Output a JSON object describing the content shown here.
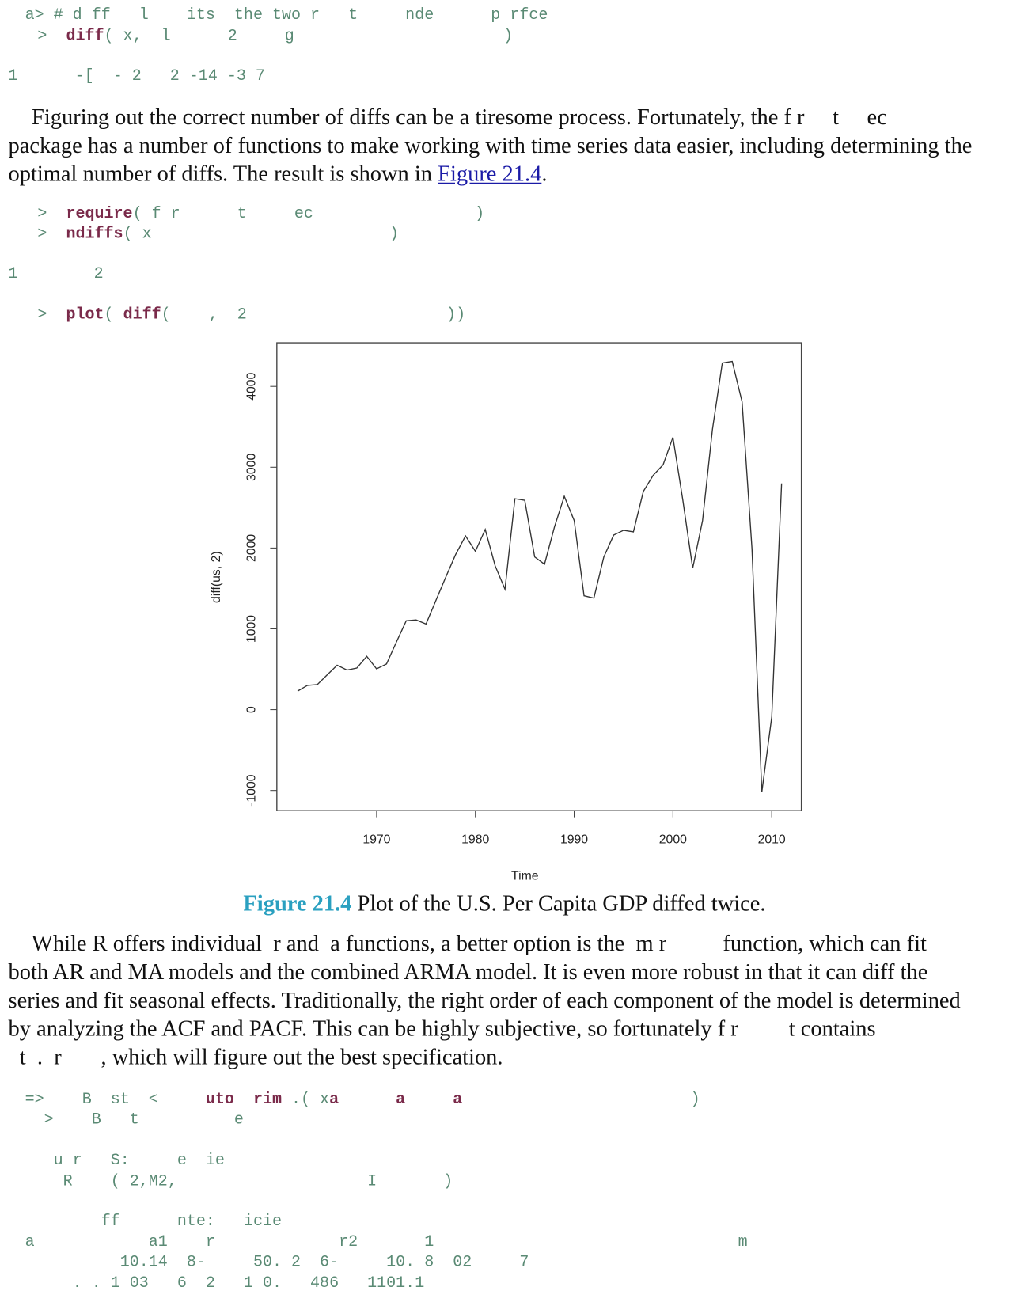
{
  "code_1": [
    [
      "a> # d ff   l    its  the two r   t     nde      p rfce"
    ],
    [
      ">  ",
      "diff",
      "( x,  l      2     g                      )"
    ]
  ],
  "output_1": "1      -[  - 2   2 -14 -3 7",
  "para_1": [
    [
      "Figuring out the correct number of diffs can be a tiresome process. Fortunately, the f r     t     ec"
    ],
    [
      "package has a number of functions to make working with time series data easier, including determining the"
    ],
    [
      "optimal number of diffs. The result is shown in ",
      "Figure 21.4",
      "."
    ]
  ],
  "code_2": [
    [
      ">  ",
      "require",
      "( f r      t     ec                 )"
    ],
    [
      ">  ",
      "ndiffs",
      "( x                         )"
    ]
  ],
  "output_2": "1        2",
  "code_3": [
    [
      ">  ",
      "plot",
      "( ",
      "diff",
      "(    ,  2                     ))"
    ]
  ],
  "chart_data": {
    "type": "line",
    "x_label": "Time",
    "y_label": "diff(us, 2)",
    "x": [
      1962,
      1963,
      1964,
      1965,
      1966,
      1967,
      1968,
      1969,
      1970,
      1971,
      1972,
      1973,
      1974,
      1975,
      1976,
      1977,
      1978,
      1979,
      1980,
      1981,
      1982,
      1983,
      1984,
      1985,
      1986,
      1987,
      1988,
      1989,
      1990,
      1991,
      1992,
      1993,
      1994,
      1995,
      1996,
      1997,
      1998,
      1999,
      2000,
      2001,
      2002,
      2003,
      2004,
      2005,
      2006,
      2007,
      2008,
      2009,
      2010,
      2011
    ],
    "values": [
      230,
      300,
      310,
      430,
      550,
      490,
      515,
      660,
      505,
      565,
      835,
      1100,
      1110,
      1060,
      1350,
      1640,
      1920,
      2150,
      1960,
      2230,
      1780,
      1490,
      2610,
      2590,
      1890,
      1800,
      2260,
      2640,
      2340,
      1410,
      1380,
      1890,
      2160,
      2220,
      2200,
      2700,
      2900,
      3030,
      3370,
      2590,
      1750,
      2340,
      3470,
      4290,
      4310,
      3810,
      1990,
      -1020,
      -90,
      2800
    ],
    "color": "#333333",
    "xlim": [
      1959.9,
      2013
    ],
    "ylim": [
      -1250,
      4540
    ],
    "xticks": [
      1970,
      1980,
      1990,
      2000,
      2010
    ],
    "yticks": [
      -1000,
      0,
      1000,
      2000,
      3000,
      4000
    ]
  },
  "caption": {
    "label": "Figure 21.4",
    "text": " Plot of the U.S. Per Capita GDP diffed twice."
  },
  "para_2": [
    [
      "While R offers individual  r and  a functions, a better option is the  m r          function, which can fit"
    ],
    [
      "both AR and MA models and the combined ARMA model. It is even more robust in that it can diff the"
    ],
    [
      "series and fit seasonal effects. Traditionally, the right order of each component of the model is determined"
    ],
    [
      "by analyzing the ACF and PACF. This can be highly subjective, so fortunately f r         t contains"
    ],
    [
      "  t  .  r       , which will figure out the best specification."
    ]
  ],
  "code_4": [
    [
      "=>    B  st  <     ",
      "uto  rim",
      " .( x",
      "a      a     a",
      "                        )"
    ],
    [
      "  >    B   t          e"
    ],
    [
      ""
    ],
    [
      "   u r   S:     e  ie"
    ],
    [
      "    R    ( 2,M2,                    I       )"
    ],
    [
      ""
    ],
    [
      "        ff      nte:   icie"
    ],
    [
      "a            a1    r             r2       1                                m"
    ],
    [
      "          10.14  8-     50. 2  6-     10. 8  02     7"
    ],
    [
      "     . . 1 03   6  2   1 0.   486   1101.1"
    ]
  ]
}
